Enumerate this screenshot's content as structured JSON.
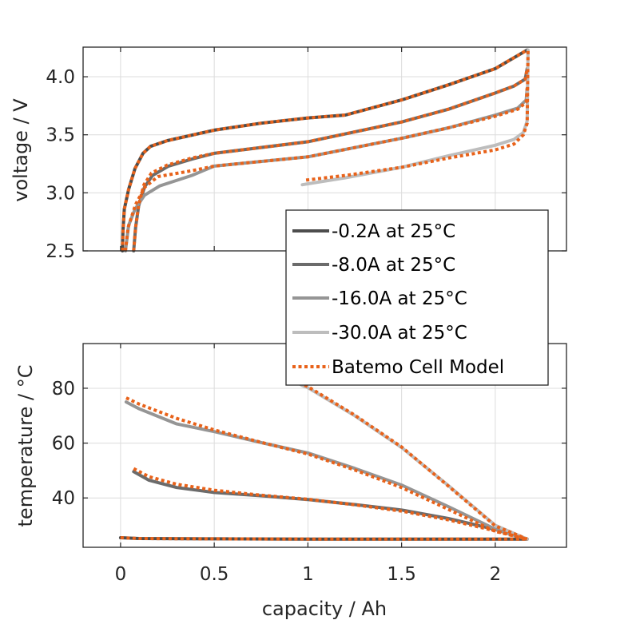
{
  "chart_data": [
    {
      "type": "line",
      "panel": "top",
      "title": "",
      "xlabel": "",
      "ylabel": "voltage / V",
      "xlim": [
        -0.2,
        2.38
      ],
      "ylim": [
        2.5,
        4.255
      ],
      "grid": true,
      "yticks": [
        2.5,
        3.0,
        3.5,
        4.0
      ],
      "ytick_labels": [
        "2.5",
        "3.0",
        "3.5",
        "4.0"
      ],
      "xticks": [
        0,
        0.5,
        1,
        1.5,
        2
      ],
      "xtick_labels": [],
      "series": [
        {
          "name": "-0.2A at 25°C",
          "style": "solid",
          "color": "#4d4d4d",
          "x": [
            0.01,
            0.013,
            0.02,
            0.043,
            0.077,
            0.12,
            0.16,
            0.25,
            0.5,
            0.75,
            1.0,
            1.2,
            1.5,
            1.75,
            2.0,
            2.17
          ],
          "y": [
            2.5,
            2.67,
            2.86,
            3.03,
            3.21,
            3.34,
            3.4,
            3.45,
            3.54,
            3.6,
            3.645,
            3.67,
            3.8,
            3.93,
            4.07,
            4.23
          ]
        },
        {
          "name": "-8.0A at 25°C",
          "style": "solid",
          "color": "#6b6b6b",
          "x": [
            0.07,
            0.08,
            0.097,
            0.128,
            0.17,
            0.256,
            0.38,
            0.5,
            1.0,
            1.5,
            1.75,
            2.0,
            2.1,
            2.16,
            2.17
          ],
          "y": [
            2.5,
            2.7,
            2.89,
            3.05,
            3.15,
            3.23,
            3.29,
            3.34,
            3.44,
            3.61,
            3.72,
            3.86,
            3.92,
            3.98,
            4.07
          ]
        },
        {
          "name": "-16.0A at 25°C",
          "style": "solid",
          "color": "#959595",
          "x": [
            0.026,
            0.043,
            0.077,
            0.128,
            0.21,
            0.38,
            0.5,
            1.0,
            1.5,
            1.75,
            2.0,
            2.12,
            2.165,
            2.17
          ],
          "y": [
            2.5,
            2.72,
            2.86,
            2.98,
            3.06,
            3.15,
            3.23,
            3.31,
            3.47,
            3.56,
            3.67,
            3.73,
            3.8,
            3.9
          ]
        },
        {
          "name": "-30.0A at 25°C",
          "style": "solid",
          "color": "#bdbdbd",
          "x": [
            0.97,
            1.2,
            1.5,
            1.75,
            2.0,
            2.1,
            2.15,
            2.17,
            2.175
          ],
          "y": [
            3.07,
            3.13,
            3.22,
            3.32,
            3.41,
            3.46,
            3.52,
            3.62,
            4.23
          ]
        },
        {
          "name": "Batemo Cell Model",
          "style": "dotted",
          "color": "#e8621a",
          "x": [
            0.01,
            0.013,
            0.02,
            0.043,
            0.077,
            0.12,
            0.16,
            0.25,
            0.5,
            0.75,
            1.0,
            1.2,
            1.5,
            1.75,
            2.0,
            2.17
          ],
          "y": [
            2.5,
            2.67,
            2.86,
            3.03,
            3.21,
            3.34,
            3.4,
            3.45,
            3.54,
            3.6,
            3.645,
            3.67,
            3.8,
            3.93,
            4.07,
            4.23
          ]
        },
        {
          "name": "Batemo Cell Model",
          "style": "dotted",
          "color": "#e8621a",
          "x": [
            0.07,
            0.08,
            0.097,
            0.125,
            0.165,
            0.25,
            0.38,
            0.5,
            1.0,
            1.5,
            1.75,
            2.0,
            2.1,
            2.16,
            2.17
          ],
          "y": [
            2.5,
            2.7,
            2.9,
            3.07,
            3.17,
            3.24,
            3.3,
            3.34,
            3.44,
            3.61,
            3.72,
            3.86,
            3.92,
            3.98,
            4.07
          ]
        },
        {
          "name": "Batemo Cell Model",
          "style": "dotted",
          "color": "#e8621a",
          "x": [
            0.026,
            0.04,
            0.08,
            0.13,
            0.2,
            0.38,
            0.5,
            1.0,
            1.5,
            1.75,
            2.0,
            2.12,
            2.165,
            2.17
          ],
          "y": [
            2.5,
            2.7,
            2.9,
            3.05,
            3.14,
            3.19,
            3.23,
            3.31,
            3.47,
            3.56,
            3.66,
            3.72,
            3.78,
            3.9
          ]
        },
        {
          "name": "Batemo Cell Model",
          "style": "dotted",
          "color": "#e8621a",
          "x": [
            0.99,
            1.2,
            1.5,
            1.75,
            2.0,
            2.1,
            2.15,
            2.17,
            2.175
          ],
          "y": [
            3.11,
            3.15,
            3.22,
            3.3,
            3.37,
            3.42,
            3.5,
            3.6,
            4.23
          ]
        }
      ]
    },
    {
      "type": "line",
      "panel": "bottom",
      "title": "",
      "xlabel": "capacity / Ah",
      "ylabel": "temperature / °C",
      "xlim": [
        -0.2,
        2.38
      ],
      "ylim": [
        22,
        96.3
      ],
      "grid": true,
      "yticks": [
        40,
        60,
        80
      ],
      "ytick_labels": [
        "40",
        "60",
        "80"
      ],
      "xticks": [
        0,
        0.5,
        1,
        1.5,
        2
      ],
      "xtick_labels": [
        "0",
        "0.5",
        "1",
        "1.5",
        "2"
      ],
      "series": [
        {
          "name": "-0.2A at 25°C",
          "style": "solid",
          "color": "#4d4d4d",
          "x": [
            0.0,
            0.1,
            0.5,
            1.0,
            1.5,
            2.0,
            2.17
          ],
          "y": [
            25.5,
            25.2,
            25.1,
            25.0,
            25.0,
            25.0,
            25.0
          ]
        },
        {
          "name": "-8.0A at 25°C",
          "style": "solid",
          "color": "#6b6b6b",
          "x": [
            0.07,
            0.15,
            0.3,
            0.5,
            0.75,
            1.0,
            1.25,
            1.5,
            1.75,
            2.0,
            2.17
          ],
          "y": [
            49.6,
            46.5,
            43.8,
            42.0,
            40.8,
            39.4,
            37.6,
            35.6,
            32.5,
            28.5,
            25.0
          ]
        },
        {
          "name": "-16.0A at 25°C",
          "style": "solid",
          "color": "#959595",
          "x": [
            0.03,
            0.1,
            0.3,
            0.5,
            0.75,
            1.0,
            1.25,
            1.5,
            1.75,
            2.0,
            2.17
          ],
          "y": [
            75.0,
            72.5,
            67.0,
            64.2,
            60.2,
            56.4,
            50.8,
            44.7,
            36.8,
            28.6,
            25.0
          ]
        },
        {
          "name": "-30.0A at 25°C",
          "style": "solid",
          "color": "#bdbdbd",
          "x": [
            0.9,
            0.97,
            1.0,
            1.25,
            1.5,
            1.75,
            2.0,
            2.17
          ],
          "y": [
            84.0,
            81.0,
            80.2,
            70.0,
            58.4,
            44.5,
            30.0,
            25.0
          ]
        },
        {
          "name": "Batemo Cell Model",
          "style": "dotted",
          "color": "#e8621a",
          "x": [
            0.0,
            0.1,
            0.5,
            1.0,
            1.5,
            2.0,
            2.17
          ],
          "y": [
            25.5,
            25.2,
            25.1,
            25.0,
            25.0,
            25.0,
            25.0
          ]
        },
        {
          "name": "Batemo Cell Model",
          "style": "dotted",
          "color": "#e8621a",
          "x": [
            0.07,
            0.15,
            0.3,
            0.5,
            0.75,
            1.0,
            1.25,
            1.5,
            1.75,
            2.0,
            2.17
          ],
          "y": [
            50.7,
            47.8,
            45.0,
            42.8,
            41.0,
            39.5,
            37.5,
            35.2,
            32.0,
            28.0,
            25.0
          ]
        },
        {
          "name": "Batemo Cell Model",
          "style": "dotted",
          "color": "#e8621a",
          "x": [
            0.03,
            0.1,
            0.3,
            0.5,
            0.75,
            1.0,
            1.25,
            1.5,
            1.75,
            2.0,
            2.17
          ],
          "y": [
            76.5,
            74.2,
            69.0,
            64.8,
            60.3,
            56.0,
            50.2,
            43.8,
            35.8,
            27.8,
            25.0
          ]
        },
        {
          "name": "Batemo Cell Model",
          "style": "dotted",
          "color": "#e8621a",
          "x": [
            0.9,
            0.97,
            1.0,
            1.25,
            1.5,
            1.75,
            2.0,
            2.17
          ],
          "y": [
            84.5,
            81.5,
            80.6,
            70.2,
            58.6,
            44.3,
            29.8,
            25.0
          ]
        }
      ]
    }
  ],
  "legend": {
    "placement": "center-right, overlapping both panels",
    "entries": [
      {
        "label": "-0.2A at 25°C",
        "style": "solid",
        "color": "#4d4d4d"
      },
      {
        "label": "-8.0A at 25°C",
        "style": "solid",
        "color": "#6b6b6b"
      },
      {
        "label": "-16.0A at 25°C",
        "style": "solid",
        "color": "#959595"
      },
      {
        "label": "-30.0A at 25°C",
        "style": "solid",
        "color": "#bdbdbd"
      },
      {
        "label": "Batemo Cell Model",
        "style": "dotted",
        "color": "#e8621a"
      }
    ]
  }
}
